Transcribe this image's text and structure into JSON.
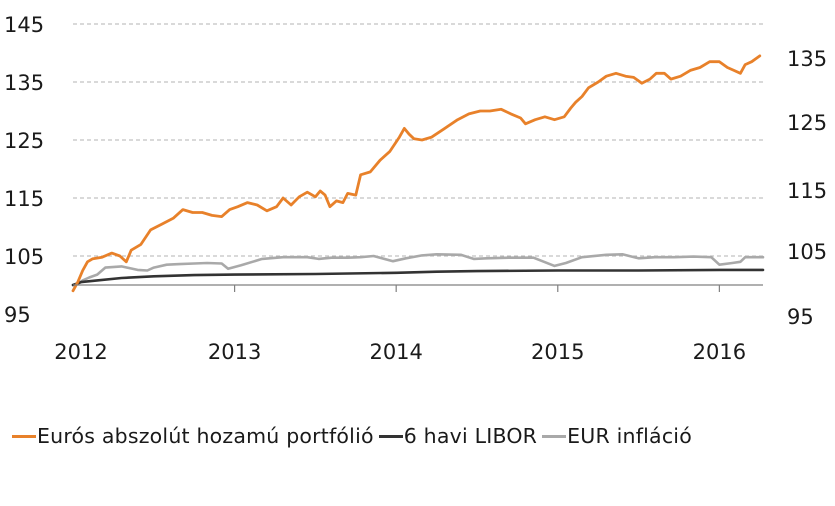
{
  "chart_data": {
    "type": "line",
    "y_left": {
      "ticks": [
        "145",
        "135",
        "125",
        "115",
        "105",
        "95"
      ],
      "ylim": [
        95,
        145
      ]
    },
    "y_right": {
      "ticks": [
        "135",
        "125",
        "115",
        "105",
        "95"
      ]
    },
    "x": {
      "ticks": [
        "2012",
        "2013",
        "2014",
        "2015",
        "2016"
      ],
      "xlim": [
        2012.0,
        2016.27
      ]
    },
    "grid": "horizontal dashed",
    "legend_placement": "bottom",
    "series": [
      {
        "name": "Eurós abszolút hozamú portfólió",
        "color": "#e8812a",
        "points": [
          [
            2012.0,
            99.0
          ],
          [
            2012.03,
            100.5
          ],
          [
            2012.06,
            102.5
          ],
          [
            2012.09,
            104.0
          ],
          [
            2012.12,
            104.5
          ],
          [
            2012.18,
            104.8
          ],
          [
            2012.24,
            105.5
          ],
          [
            2012.29,
            105.0
          ],
          [
            2012.33,
            104.0
          ],
          [
            2012.36,
            106.0
          ],
          [
            2012.42,
            107.0
          ],
          [
            2012.48,
            109.5
          ],
          [
            2012.55,
            110.5
          ],
          [
            2012.62,
            111.5
          ],
          [
            2012.68,
            113.0
          ],
          [
            2012.74,
            112.5
          ],
          [
            2012.8,
            112.5
          ],
          [
            2012.86,
            112.0
          ],
          [
            2012.92,
            111.8
          ],
          [
            2012.97,
            113.0
          ],
          [
            2013.02,
            113.5
          ],
          [
            2013.08,
            114.2
          ],
          [
            2013.14,
            113.8
          ],
          [
            2013.2,
            112.8
          ],
          [
            2013.26,
            113.5
          ],
          [
            2013.3,
            115.0
          ],
          [
            2013.35,
            113.8
          ],
          [
            2013.4,
            115.2
          ],
          [
            2013.45,
            116.0
          ],
          [
            2013.5,
            115.2
          ],
          [
            2013.53,
            116.2
          ],
          [
            2013.56,
            115.5
          ],
          [
            2013.59,
            113.5
          ],
          [
            2013.63,
            114.5
          ],
          [
            2013.67,
            114.2
          ],
          [
            2013.7,
            115.8
          ],
          [
            2013.75,
            115.5
          ],
          [
            2013.78,
            119.0
          ],
          [
            2013.84,
            119.5
          ],
          [
            2013.9,
            121.5
          ],
          [
            2013.96,
            123.0
          ],
          [
            2014.02,
            125.5
          ],
          [
            2014.05,
            127.0
          ],
          [
            2014.08,
            126.0
          ],
          [
            2014.11,
            125.2
          ],
          [
            2014.16,
            125.0
          ],
          [
            2014.22,
            125.5
          ],
          [
            2014.3,
            127.0
          ],
          [
            2014.38,
            128.5
          ],
          [
            2014.45,
            129.5
          ],
          [
            2014.52,
            130.0
          ],
          [
            2014.58,
            130.0
          ],
          [
            2014.65,
            130.3
          ],
          [
            2014.71,
            129.5
          ],
          [
            2014.77,
            128.8
          ],
          [
            2014.8,
            127.8
          ],
          [
            2014.86,
            128.5
          ],
          [
            2014.92,
            129.0
          ],
          [
            2014.98,
            128.5
          ],
          [
            2015.04,
            129.0
          ],
          [
            2015.08,
            130.5
          ],
          [
            2015.11,
            131.5
          ],
          [
            2015.15,
            132.5
          ],
          [
            2015.19,
            134.0
          ],
          [
            2015.25,
            135.0
          ],
          [
            2015.3,
            136.0
          ],
          [
            2015.36,
            136.5
          ],
          [
            2015.42,
            136.0
          ],
          [
            2015.47,
            135.8
          ],
          [
            2015.52,
            134.8
          ],
          [
            2015.57,
            135.5
          ],
          [
            2015.61,
            136.5
          ],
          [
            2015.66,
            136.5
          ],
          [
            2015.7,
            135.5
          ],
          [
            2015.76,
            136.0
          ],
          [
            2015.82,
            137.0
          ],
          [
            2015.88,
            137.5
          ],
          [
            2015.94,
            138.5
          ],
          [
            2016.0,
            138.5
          ],
          [
            2016.05,
            137.5
          ],
          [
            2016.09,
            137.0
          ],
          [
            2016.13,
            136.5
          ],
          [
            2016.16,
            138.0
          ],
          [
            2016.2,
            138.5
          ],
          [
            2016.25,
            139.5
          ]
        ]
      },
      {
        "name": "6 havi LIBOR",
        "color": "#333333",
        "points": [
          [
            2012.0,
            100.0
          ],
          [
            2012.05,
            100.5
          ],
          [
            2012.15,
            100.8
          ],
          [
            2012.3,
            101.2
          ],
          [
            2012.5,
            101.5
          ],
          [
            2012.75,
            101.7
          ],
          [
            2013.0,
            101.8
          ],
          [
            2013.5,
            101.9
          ],
          [
            2014.0,
            102.1
          ],
          [
            2014.25,
            102.3
          ],
          [
            2014.5,
            102.4
          ],
          [
            2015.0,
            102.5
          ],
          [
            2015.5,
            102.5
          ],
          [
            2016.0,
            102.6
          ],
          [
            2016.27,
            102.6
          ]
        ]
      },
      {
        "name": "EUR infláció",
        "color": "#a9a9a9",
        "points": [
          [
            2012.0,
            100.0
          ],
          [
            2012.03,
            100.2
          ],
          [
            2012.06,
            100.8
          ],
          [
            2012.1,
            101.3
          ],
          [
            2012.15,
            101.8
          ],
          [
            2012.2,
            103.0
          ],
          [
            2012.3,
            103.2
          ],
          [
            2012.4,
            102.6
          ],
          [
            2012.46,
            102.5
          ],
          [
            2012.5,
            103.0
          ],
          [
            2012.58,
            103.5
          ],
          [
            2012.66,
            103.6
          ],
          [
            2012.75,
            103.7
          ],
          [
            2012.83,
            103.8
          ],
          [
            2012.92,
            103.7
          ],
          [
            2012.96,
            102.8
          ],
          [
            2013.04,
            103.4
          ],
          [
            2013.17,
            104.5
          ],
          [
            2013.3,
            104.8
          ],
          [
            2013.45,
            104.8
          ],
          [
            2013.52,
            104.5
          ],
          [
            2013.6,
            104.7
          ],
          [
            2013.7,
            104.7
          ],
          [
            2013.78,
            104.8
          ],
          [
            2013.86,
            105.0
          ],
          [
            2013.98,
            104.1
          ],
          [
            2014.06,
            104.6
          ],
          [
            2014.16,
            105.1
          ],
          [
            2014.25,
            105.3
          ],
          [
            2014.4,
            105.2
          ],
          [
            2014.48,
            104.5
          ],
          [
            2014.56,
            104.6
          ],
          [
            2014.7,
            104.7
          ],
          [
            2014.85,
            104.7
          ],
          [
            2014.98,
            103.3
          ],
          [
            2015.05,
            103.8
          ],
          [
            2015.15,
            104.8
          ],
          [
            2015.3,
            105.2
          ],
          [
            2015.4,
            105.3
          ],
          [
            2015.5,
            104.6
          ],
          [
            2015.6,
            104.8
          ],
          [
            2015.72,
            104.8
          ],
          [
            2015.84,
            104.9
          ],
          [
            2015.95,
            104.8
          ],
          [
            2016.0,
            103.5
          ],
          [
            2016.08,
            103.8
          ],
          [
            2016.13,
            104.0
          ],
          [
            2016.16,
            104.8
          ],
          [
            2016.27,
            104.8
          ]
        ]
      }
    ]
  }
}
